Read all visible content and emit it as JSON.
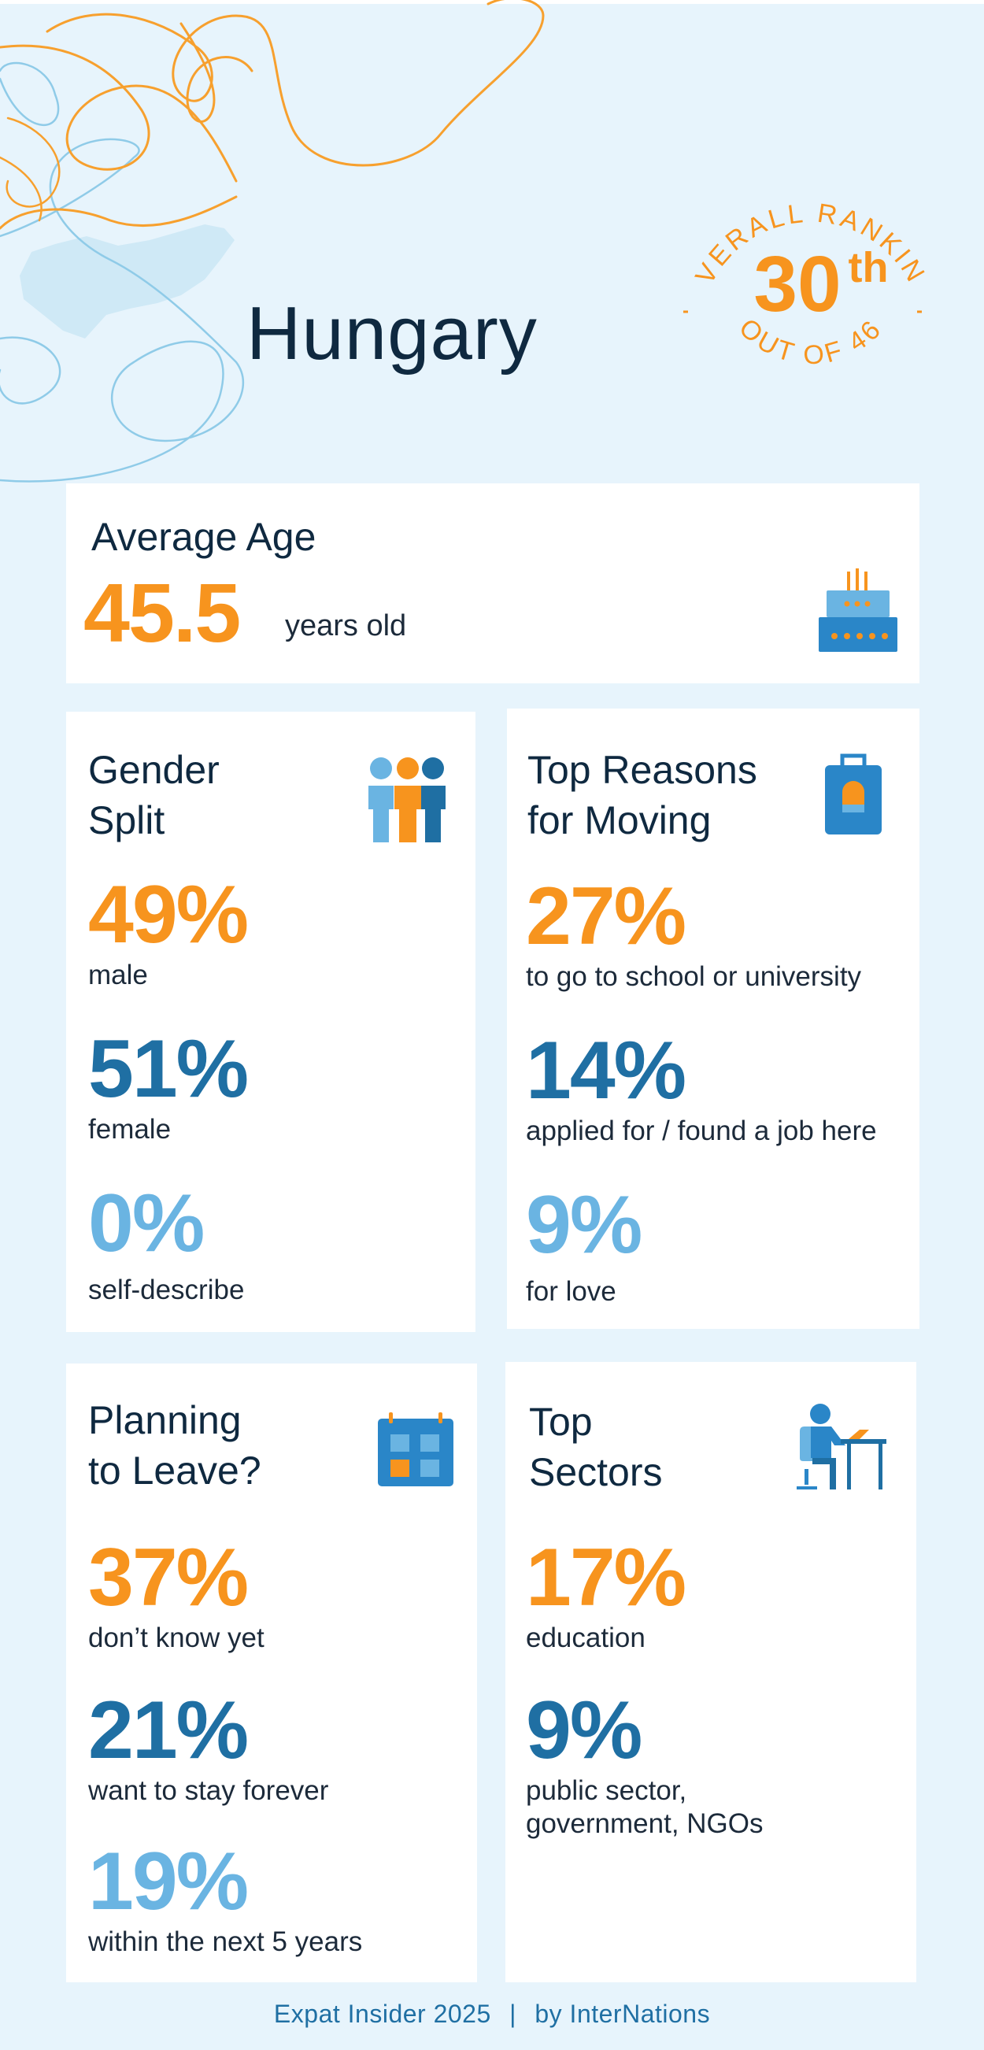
{
  "header": {
    "country": "Hungary",
    "ranking_label": "OVERALL RANKING",
    "rank": "30",
    "rank_suffix": "th",
    "out_of_label": "OUT OF 46"
  },
  "average_age": {
    "title": "Average Age",
    "value": "45.5",
    "unit": "years old",
    "icon": "birthday-cake-icon"
  },
  "gender_split": {
    "title": "Gender\nSplit",
    "icon": "people-group-icon",
    "stats": [
      {
        "value": "49%",
        "label": "male"
      },
      {
        "value": "51%",
        "label": "female"
      },
      {
        "value": "0%",
        "label": "self-describe"
      }
    ]
  },
  "top_reasons": {
    "title": "Top Reasons\nfor Moving",
    "icon": "luggage-icon",
    "stats": [
      {
        "value": "27%",
        "label": "to go to school or university"
      },
      {
        "value": "14%",
        "label": "applied for / found a job here"
      },
      {
        "value": "9%",
        "label": "for love"
      }
    ]
  },
  "planning_to_leave": {
    "title": "Planning\nto Leave?",
    "icon": "calendar-icon",
    "stats": [
      {
        "value": "37%",
        "label": "don’t know yet"
      },
      {
        "value": "21%",
        "label": "want to stay forever"
      },
      {
        "value": "19%",
        "label": "within the next 5 years"
      }
    ]
  },
  "top_sectors": {
    "title": "Top\nSectors",
    "icon": "person-at-desk-icon",
    "stats": [
      {
        "value": "17%",
        "label": "education"
      },
      {
        "value": "9%",
        "label": "public sector,\ngovernment, NGOs"
      }
    ]
  },
  "footer": {
    "publication": "Expat Insider 2025",
    "separator": "|",
    "by": "by InterNations"
  },
  "colors": {
    "background": "#e7f4fc",
    "orange": "#f7941e",
    "dark_blue": "#1f6fa3",
    "light_blue": "#6ab4e2",
    "title": "#0f2940"
  }
}
